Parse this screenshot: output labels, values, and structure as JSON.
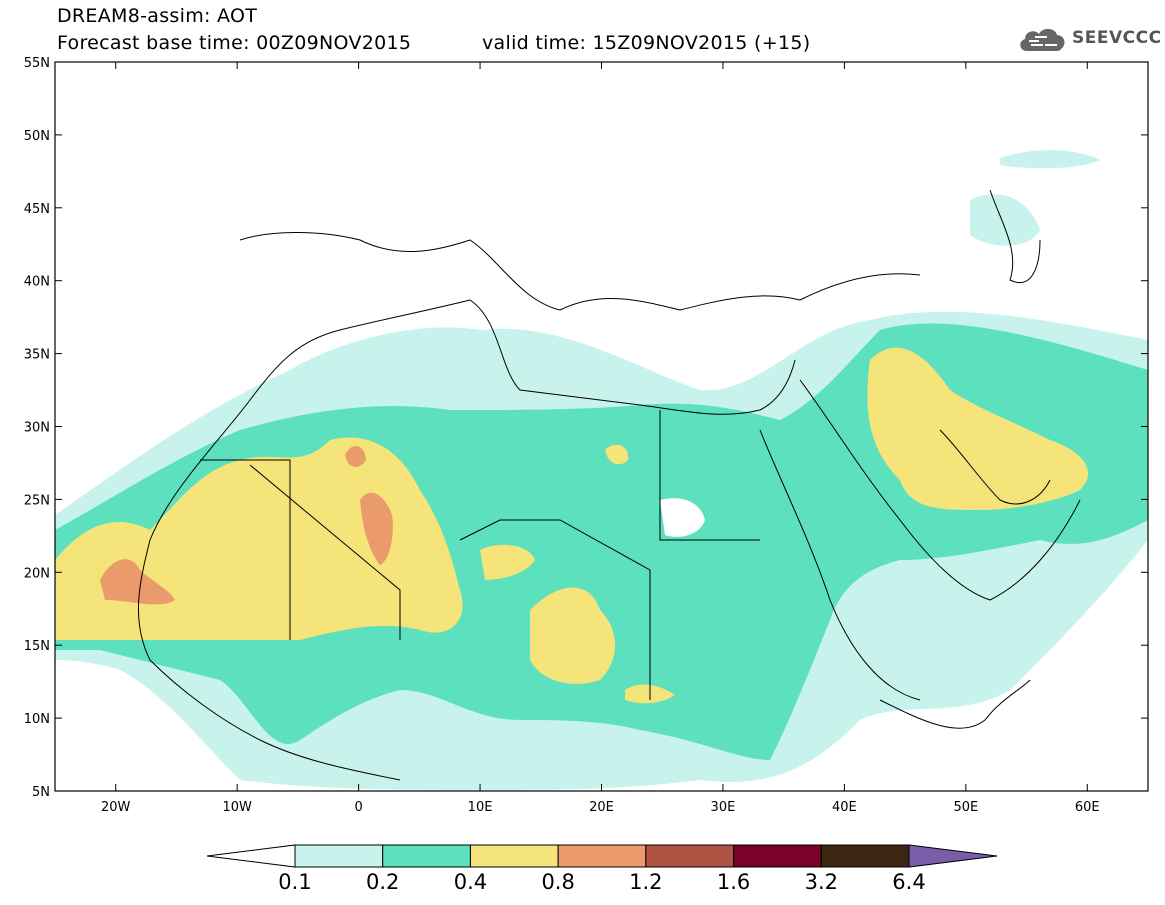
{
  "title": {
    "line1": "DREAM8-assim: AOT",
    "line2": "Forecast base time: 00Z09NOV2015",
    "valid": "valid time: 15Z09NOV2015 (+15)"
  },
  "logo": {
    "text": "SEEVCCC",
    "icon": "cloud-icon"
  },
  "map": {
    "lat_labels": [
      "55N",
      "50N",
      "45N",
      "40N",
      "35N",
      "30N",
      "25N",
      "20N",
      "15N",
      "10N",
      "5N"
    ],
    "lon_labels": [
      "20W",
      "10W",
      "0",
      "10E",
      "20E",
      "30E",
      "40E",
      "50E",
      "60E"
    ],
    "background": "#ffffff",
    "boundary_color": "#000000"
  },
  "colorbar": {
    "levels": [
      "0.1",
      "0.2",
      "0.4",
      "0.8",
      "1.2",
      "1.6",
      "3.2",
      "6.4"
    ],
    "colors": [
      "#ffffff",
      "#c8f2ec",
      "#5ce0bd",
      "#f5e47a",
      "#eb9a6c",
      "#b05342",
      "#7a0228",
      "#3c2713",
      "#7b5ca8"
    ]
  },
  "chart_data": {
    "type": "heatmap",
    "title": "DREAM8-assim: AOT",
    "subtitle": "Forecast base time: 00Z09NOV2015   valid time: 15Z09NOV2015 (+15)",
    "x_range": [
      "25W",
      "65E"
    ],
    "y_range": [
      "5N",
      "55N"
    ],
    "contour_levels": [
      0.1,
      0.2,
      0.4,
      0.8,
      1.2,
      1.6,
      3.2,
      6.4
    ]
  }
}
